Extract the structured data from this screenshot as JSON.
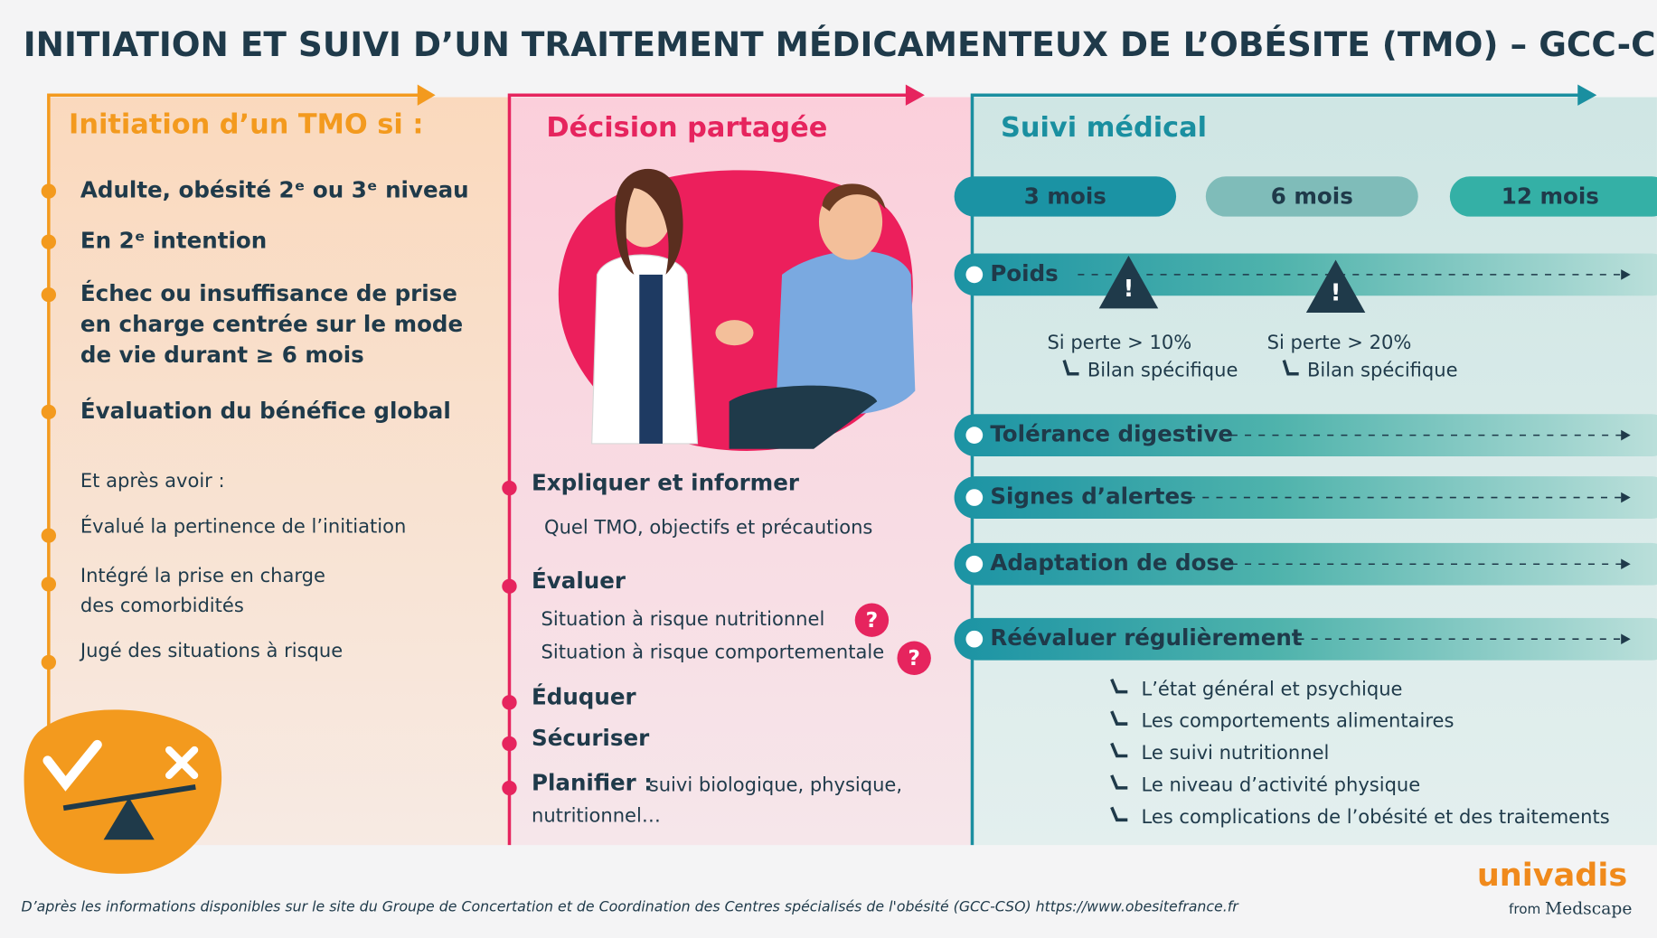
{
  "title": "INITIATION ET SUIVI D’UN TRAITEMENT MÉDICAMENTEUX DE L’OBÉSITE (TMO) – GCC-CSO",
  "initiation": {
    "heading": "Initiation d’un TMO si :",
    "criteria": [
      [
        "Adulte, obésité 2ᵉ ou 3ᵉ niveau"
      ],
      [
        "En 2ᵉ intention"
      ],
      [
        "Échec ou insuffisance de prise",
        "en charge centrée sur le mode",
        "de vie durant ≥ 6 mois"
      ],
      [
        "Évaluation du bénéfice global"
      ]
    ],
    "after_label": "Et après avoir :",
    "after_items": [
      [
        "Évalué la pertinence de l’initiation"
      ],
      [
        "Intégré la prise en charge",
        "des comorbidités"
      ],
      [
        "Jugé des situations à risque"
      ]
    ]
  },
  "decision": {
    "heading": "Décision partagée",
    "steps": [
      {
        "label": "Expliquer et informer",
        "details": [
          "Quel TMO, objectifs et précautions"
        ]
      },
      {
        "label": "Évaluer",
        "details": [
          "Situation à risque nutritionnel",
          "Situation à risque comportementale"
        ]
      },
      {
        "label": "Éduquer",
        "details": []
      },
      {
        "label": "Sécuriser",
        "details": []
      },
      {
        "label": "Planifier :",
        "details": [
          "suivi biologique, physique,",
          "nutritionnel…"
        ]
      }
    ]
  },
  "suivi": {
    "heading": "Suivi médical",
    "periods": [
      "3  mois",
      "6  mois",
      "12  mois"
    ],
    "poids": {
      "label": "Poids",
      "alerts": [
        {
          "condition": "Si perte > 10%",
          "action": "Bilan spécifique"
        },
        {
          "condition": "Si perte > 20%",
          "action": "Bilan spécifique"
        }
      ]
    },
    "rows": [
      "Tolérance digestive",
      "Signes d’alertes",
      "Adaptation de dose"
    ],
    "reevaluer": {
      "label": "Réévaluer régulièrement",
      "items": [
        "L’état général et psychique",
        "Les comportements alimentaires",
        "Le suivi nutritionnel",
        "Le niveau d’activité physique",
        "Les complications de l’obésité et des traitements"
      ]
    }
  },
  "footer": {
    "source": "D’après les informations disponibles sur le site du Groupe de Concertation et de Coordination des Centres spécialisés de l'obésité (GCC-CSO) https://www.obesitefrance.fr",
    "brand": "univadis",
    "from": "from",
    "partner": "Medscape"
  }
}
